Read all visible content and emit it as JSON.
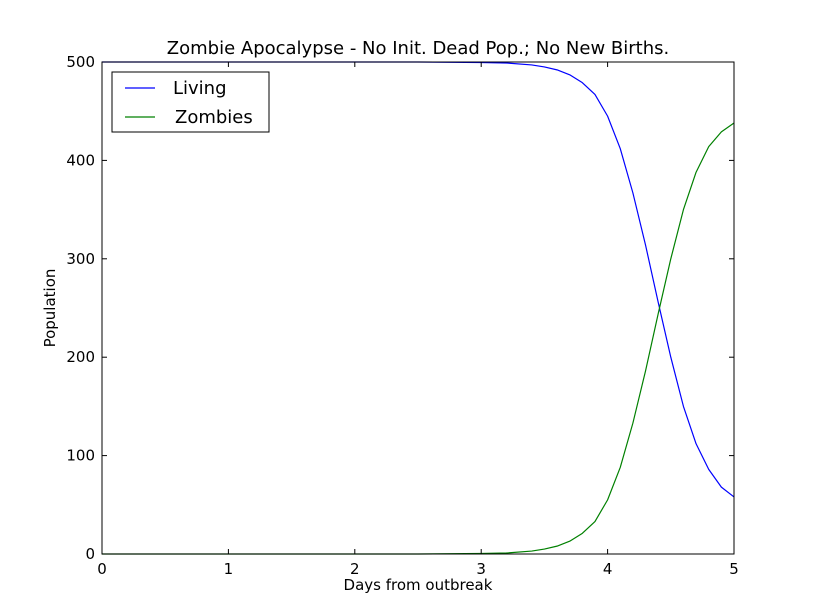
{
  "chart_data": {
    "type": "line",
    "title": "Zombie Apocalypse - No Init. Dead Pop.; No New Births.",
    "xlabel": "Days from outbreak",
    "ylabel": "Population",
    "xlim": [
      0,
      5
    ],
    "ylim": [
      0,
      500
    ],
    "xticks": [
      0,
      1,
      2,
      3,
      4,
      5
    ],
    "yticks": [
      0,
      100,
      200,
      300,
      400,
      500
    ],
    "grid": false,
    "legend_position": "top-left",
    "x": [
      0,
      0.5,
      1,
      1.5,
      2,
      2.5,
      3,
      3.2,
      3.4,
      3.5,
      3.6,
      3.7,
      3.8,
      3.9,
      4.0,
      4.1,
      4.2,
      4.3,
      4.4,
      4.5,
      4.6,
      4.7,
      4.8,
      4.9,
      5.0
    ],
    "series": [
      {
        "name": "Living",
        "color": "#0000ff",
        "values": [
          500,
          500,
          500,
          500,
          500,
          500,
          499.5,
          499,
          497,
          495,
          492,
          487,
          479,
          467,
          445,
          412,
          367,
          314,
          256,
          200,
          150,
          112,
          86,
          68,
          58
        ]
      },
      {
        "name": "Zombies",
        "color": "#008000",
        "values": [
          0,
          0,
          0,
          0,
          0,
          0,
          0.5,
          1,
          3,
          5,
          8,
          13,
          21,
          33,
          55,
          88,
          133,
          186,
          244,
          300,
          350,
          388,
          414,
          429,
          438
        ]
      }
    ]
  }
}
